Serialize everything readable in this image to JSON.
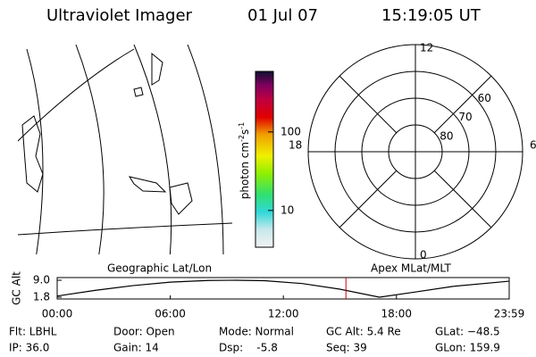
{
  "header": {
    "title": "Ultraviolet Imager",
    "date": "01 Jul 07",
    "time": "15:19:05 UT"
  },
  "map_label": "Geographic Lat/Lon",
  "polar": {
    "label": "Apex MLat/MLT",
    "rlim": [
      90,
      50
    ],
    "rticks": [
      60,
      70,
      80
    ],
    "mlt_ticks": [
      0,
      6,
      12,
      18
    ]
  },
  "colorbar": {
    "label": [
      "photon cm",
      "-2",
      "s",
      "-1"
    ],
    "log": true,
    "lim": [
      3.4,
      590
    ],
    "ticks": [
      10,
      100
    ]
  },
  "chart_data": {
    "type": "line",
    "ylabel": "GC Alt",
    "xlim": [
      0,
      23.983
    ],
    "ylim": [
      1.8,
      9.0
    ],
    "yticks": [
      {
        "value": 9.0,
        "label": "9.0"
      },
      {
        "value": 1.8,
        "label": "1.8"
      }
    ],
    "xticks": [
      {
        "value": 0,
        "label": "00:00"
      },
      {
        "value": 6,
        "label": "06:00"
      },
      {
        "value": 12,
        "label": "12:00"
      },
      {
        "value": 18,
        "label": "18:00"
      },
      {
        "value": 23.983,
        "label": "23:59"
      }
    ],
    "x": [
      0,
      2,
      4,
      6,
      8,
      9.5,
      11,
      13,
      15,
      17.1,
      19,
      21,
      23.983
    ],
    "series": [
      {
        "name": "GC Alt",
        "color": "#000000",
        "values": [
          2.3,
          4.7,
          6.7,
          8.2,
          8.9,
          9.0,
          8.8,
          7.6,
          5.2,
          1.8,
          4.0,
          6.4,
          8.6
        ]
      }
    ],
    "marker": {
      "value": 15.32,
      "color": "#d00000"
    }
  },
  "footer": [
    [
      "Flt: LBHL",
      "Door: Open",
      "Mode: Normal",
      "GC Alt: 5.4 Re",
      "GLat: −48.5"
    ],
    [
      "IP: 36.0",
      "Gain: 14",
      "Dsp:    -5.8",
      "Seq: 39",
      "GLon: 159.9"
    ]
  ]
}
